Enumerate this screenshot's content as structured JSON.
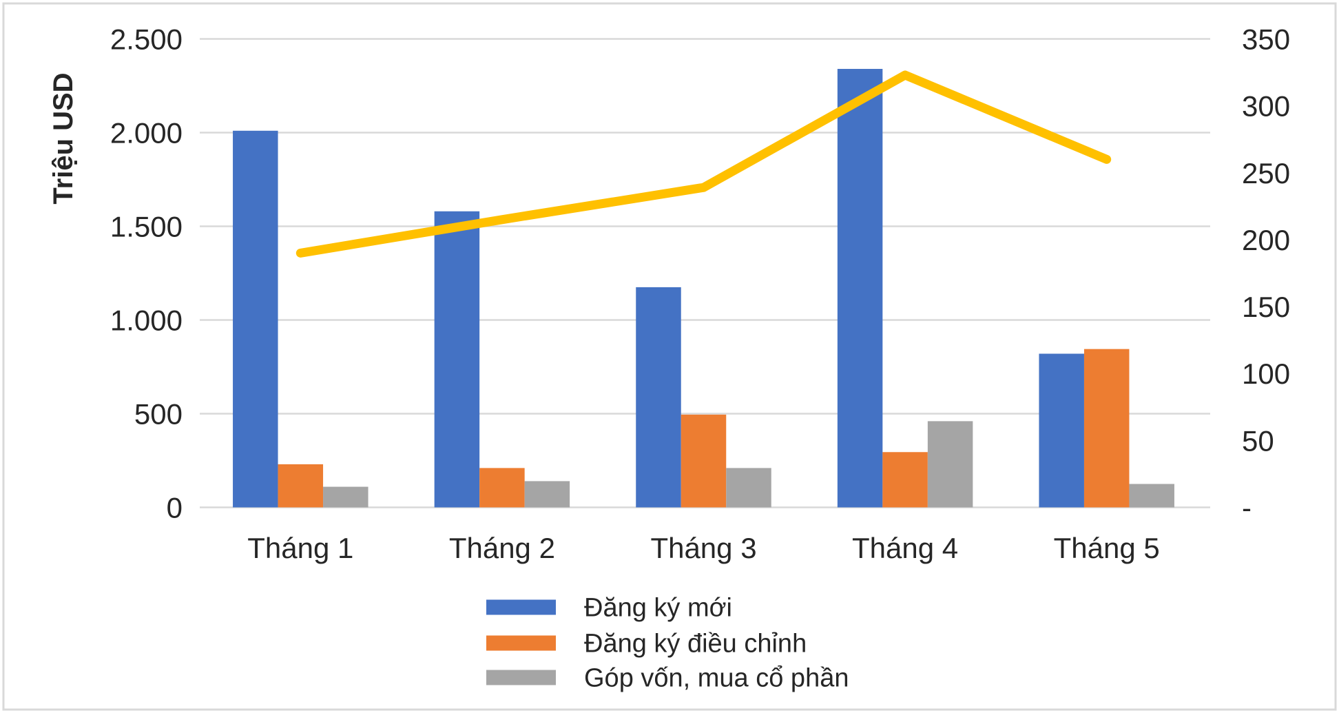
{
  "chart_data": {
    "type": "combo-bar-line",
    "title": "",
    "categories": [
      "Tháng 1",
      "Tháng 2",
      "Tháng 3",
      "Tháng 4",
      "Tháng 5"
    ],
    "series": [
      {
        "name": "Đăng ký mới",
        "type": "bar",
        "axis": "left",
        "color": "#4472C4",
        "in_legend": true,
        "values": [
          2010,
          1580,
          1175,
          2340,
          820
        ]
      },
      {
        "name": "Đăng ký điều chỉnh",
        "type": "bar",
        "axis": "left",
        "color": "#ED7D31",
        "in_legend": true,
        "values": [
          230,
          210,
          495,
          295,
          845
        ]
      },
      {
        "name": "Góp vốn, mua cổ phần",
        "type": "bar",
        "axis": "left",
        "color": "#A5A5A5",
        "in_legend": true,
        "values": [
          110,
          140,
          210,
          460,
          125
        ]
      },
      {
        "name": "",
        "type": "line",
        "axis": "right",
        "color": "#FFC000",
        "in_legend": false,
        "values": [
          190,
          215,
          239,
          323,
          260
        ]
      }
    ],
    "left_axis": {
      "title": "Triệu USD",
      "min": 0,
      "max": 2500,
      "step": 500,
      "ticks": [
        {
          "v": 0,
          "label": "0"
        },
        {
          "v": 500,
          "label": "500"
        },
        {
          "v": 1000,
          "label": "1.000"
        },
        {
          "v": 1500,
          "label": "1.500"
        },
        {
          "v": 2000,
          "label": "2.000"
        },
        {
          "v": 2500,
          "label": "2.500"
        }
      ]
    },
    "right_axis": {
      "title": "",
      "min": 0,
      "max": 350,
      "step": 50,
      "ticks": [
        {
          "v": 0,
          "label": "-"
        },
        {
          "v": 50,
          "label": "50"
        },
        {
          "v": 100,
          "label": "100"
        },
        {
          "v": 150,
          "label": "150"
        },
        {
          "v": 200,
          "label": "200"
        },
        {
          "v": 250,
          "label": "250"
        },
        {
          "v": 300,
          "label": "300"
        },
        {
          "v": 350,
          "label": "350"
        }
      ]
    },
    "legend": {
      "position": "bottom-center",
      "entries": [
        "Đăng ký mới",
        "Đăng ký điều chỉnh",
        "Góp vốn, mua cổ phần"
      ]
    },
    "grid": "horizontal",
    "colors": {
      "gridline": "#D9D9D9",
      "frame": "#D9D9D9",
      "text": "#262626",
      "background": "#FFFFFF"
    }
  }
}
